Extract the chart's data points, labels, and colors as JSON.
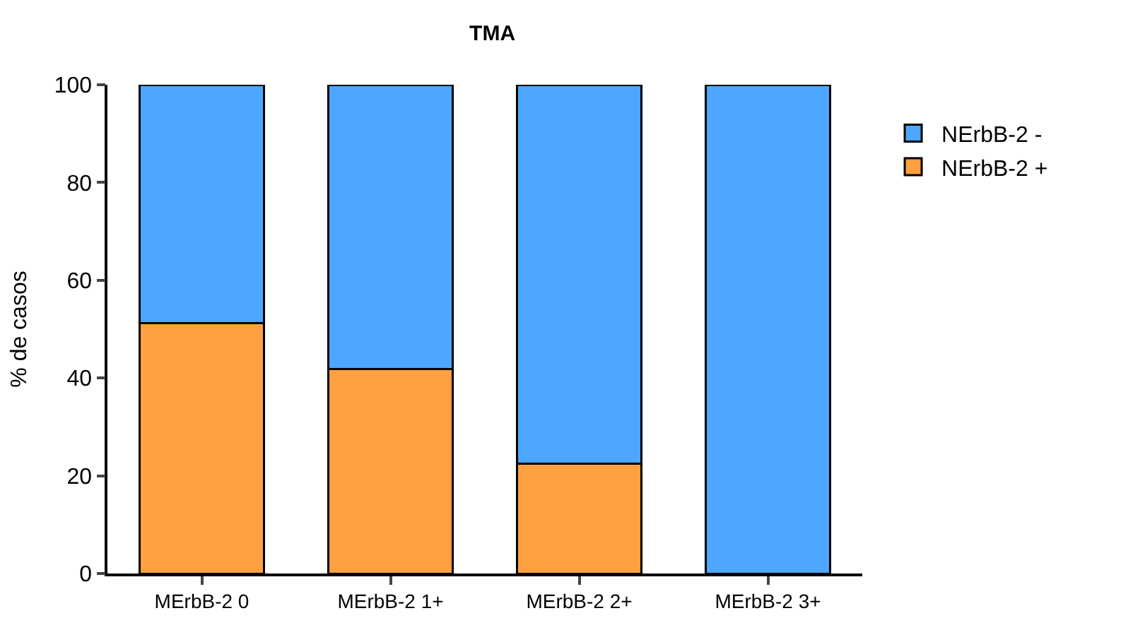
{
  "chart_data": {
    "type": "bar",
    "title": "TMA",
    "ylabel": "% de casos",
    "categories": [
      "MErbB-2 0",
      "MErbB-2 1+",
      "MErbB-2 2+",
      "MErbB-2 3+"
    ],
    "stacked": true,
    "series": [
      {
        "name": "NErbB-2 +",
        "color": "#ffa040",
        "values": [
          51.2,
          41.9,
          22.5,
          0
        ]
      },
      {
        "name": "NErbB-2 -",
        "color": "#4da6ff",
        "values": [
          48.8,
          58.1,
          77.5,
          100
        ]
      }
    ],
    "ylim": [
      0,
      100
    ],
    "yticks": [
      0,
      20,
      40,
      60,
      80,
      100
    ],
    "legend": "right"
  }
}
